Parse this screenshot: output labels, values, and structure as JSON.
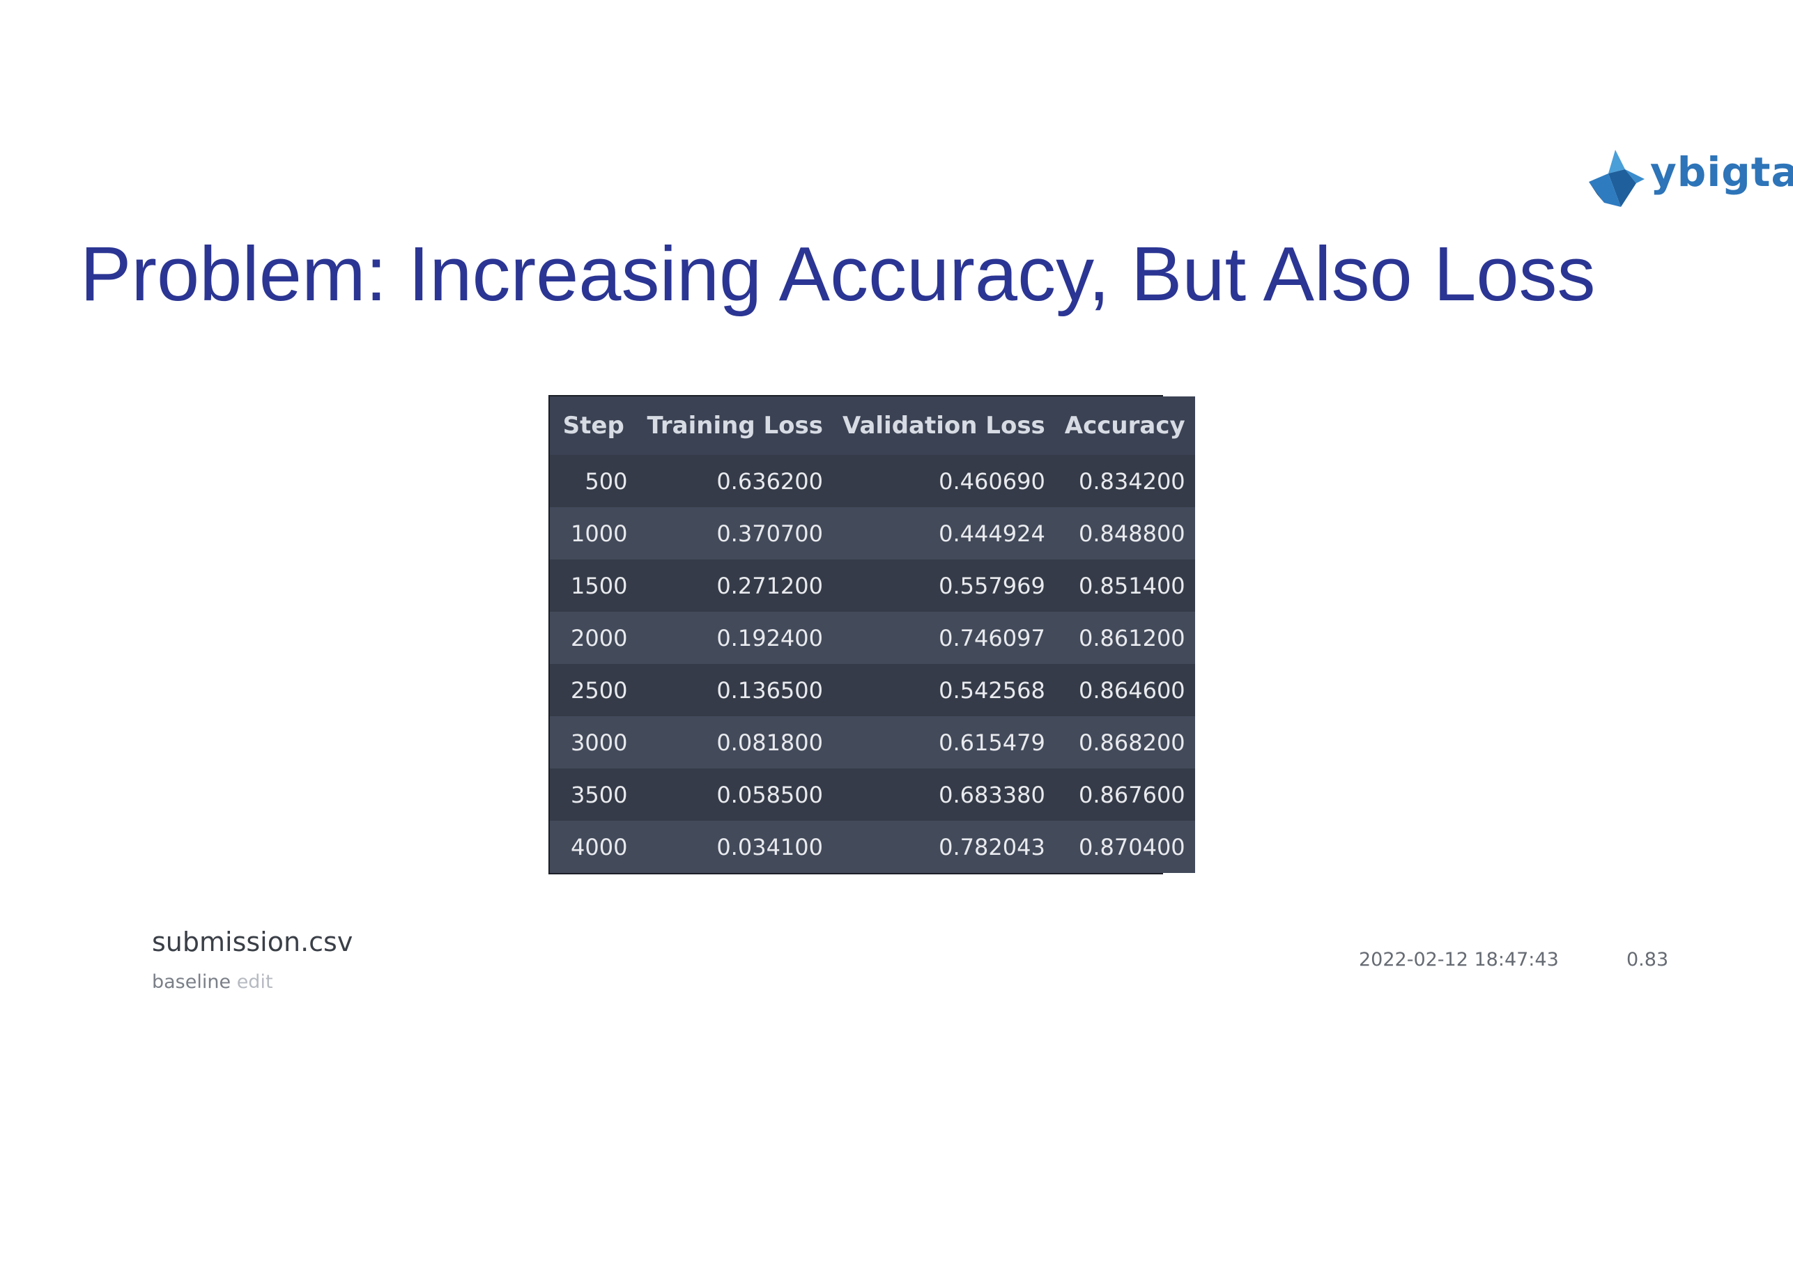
{
  "logo": {
    "text": "ybigta"
  },
  "slide": {
    "title": "Problem: Increasing Accuracy, But Also Loss"
  },
  "chart_data": {
    "type": "table",
    "columns": [
      "Step",
      "Training Loss",
      "Validation Loss",
      "Accuracy"
    ],
    "rows": [
      [
        "500",
        "0.636200",
        "0.460690",
        "0.834200"
      ],
      [
        "1000",
        "0.370700",
        "0.444924",
        "0.848800"
      ],
      [
        "1500",
        "0.271200",
        "0.557969",
        "0.851400"
      ],
      [
        "2000",
        "0.192400",
        "0.746097",
        "0.861200"
      ],
      [
        "2500",
        "0.136500",
        "0.542568",
        "0.864600"
      ],
      [
        "3000",
        "0.081800",
        "0.615479",
        "0.868200"
      ],
      [
        "3500",
        "0.058500",
        "0.683380",
        "0.867600"
      ],
      [
        "4000",
        "0.034100",
        "0.782043",
        "0.870400"
      ]
    ]
  },
  "submission": {
    "filename": "submission.csv",
    "description": "baseline",
    "edit_label": "edit",
    "date": "2022-02-12 18:47:43",
    "score": "0.83"
  }
}
